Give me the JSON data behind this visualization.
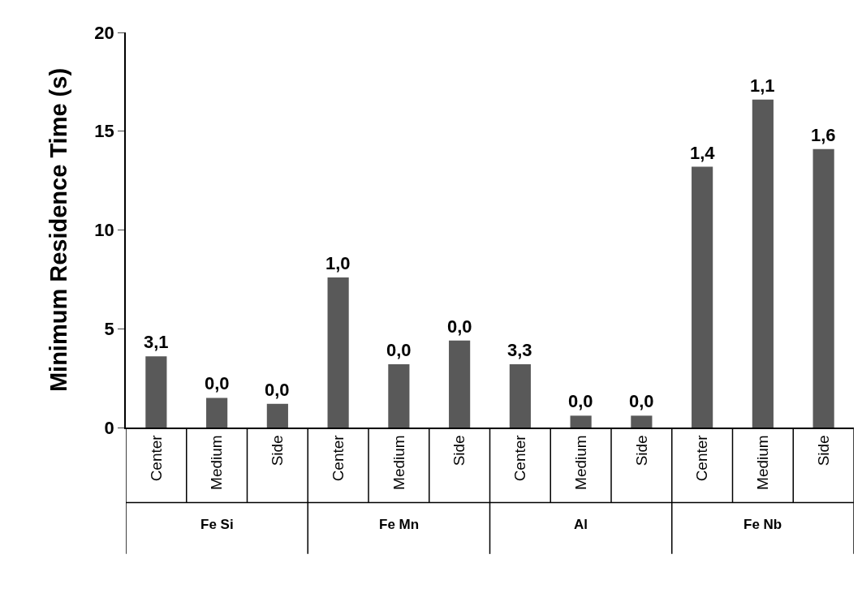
{
  "chart_data": {
    "type": "bar",
    "ylabel": "Minimum Residence Time (s)",
    "categories": [
      "Center",
      "Medium",
      "Side",
      "Center",
      "Medium",
      "Side",
      "Center",
      "Medium",
      "Side",
      "Center",
      "Medium",
      "Side"
    ],
    "values": [
      3.6,
      1.5,
      1.2,
      7.6,
      3.2,
      4.4,
      3.2,
      0.6,
      0.6,
      13.2,
      16.6,
      14.1
    ],
    "color": "#595959",
    "ylim": [
      0,
      20
    ],
    "yticks": [
      0,
      5,
      10,
      15,
      20
    ],
    "grid": false,
    "annotations": [
      "3,1",
      "0,0",
      "0,0",
      "1,0",
      "0,0",
      "0,0",
      "3,3",
      "0,0",
      "0,0",
      "1,4",
      "1,1",
      "1,6",
      "Fe Si",
      "Fe Mn",
      "Al",
      "Fe Nb"
    ]
  }
}
